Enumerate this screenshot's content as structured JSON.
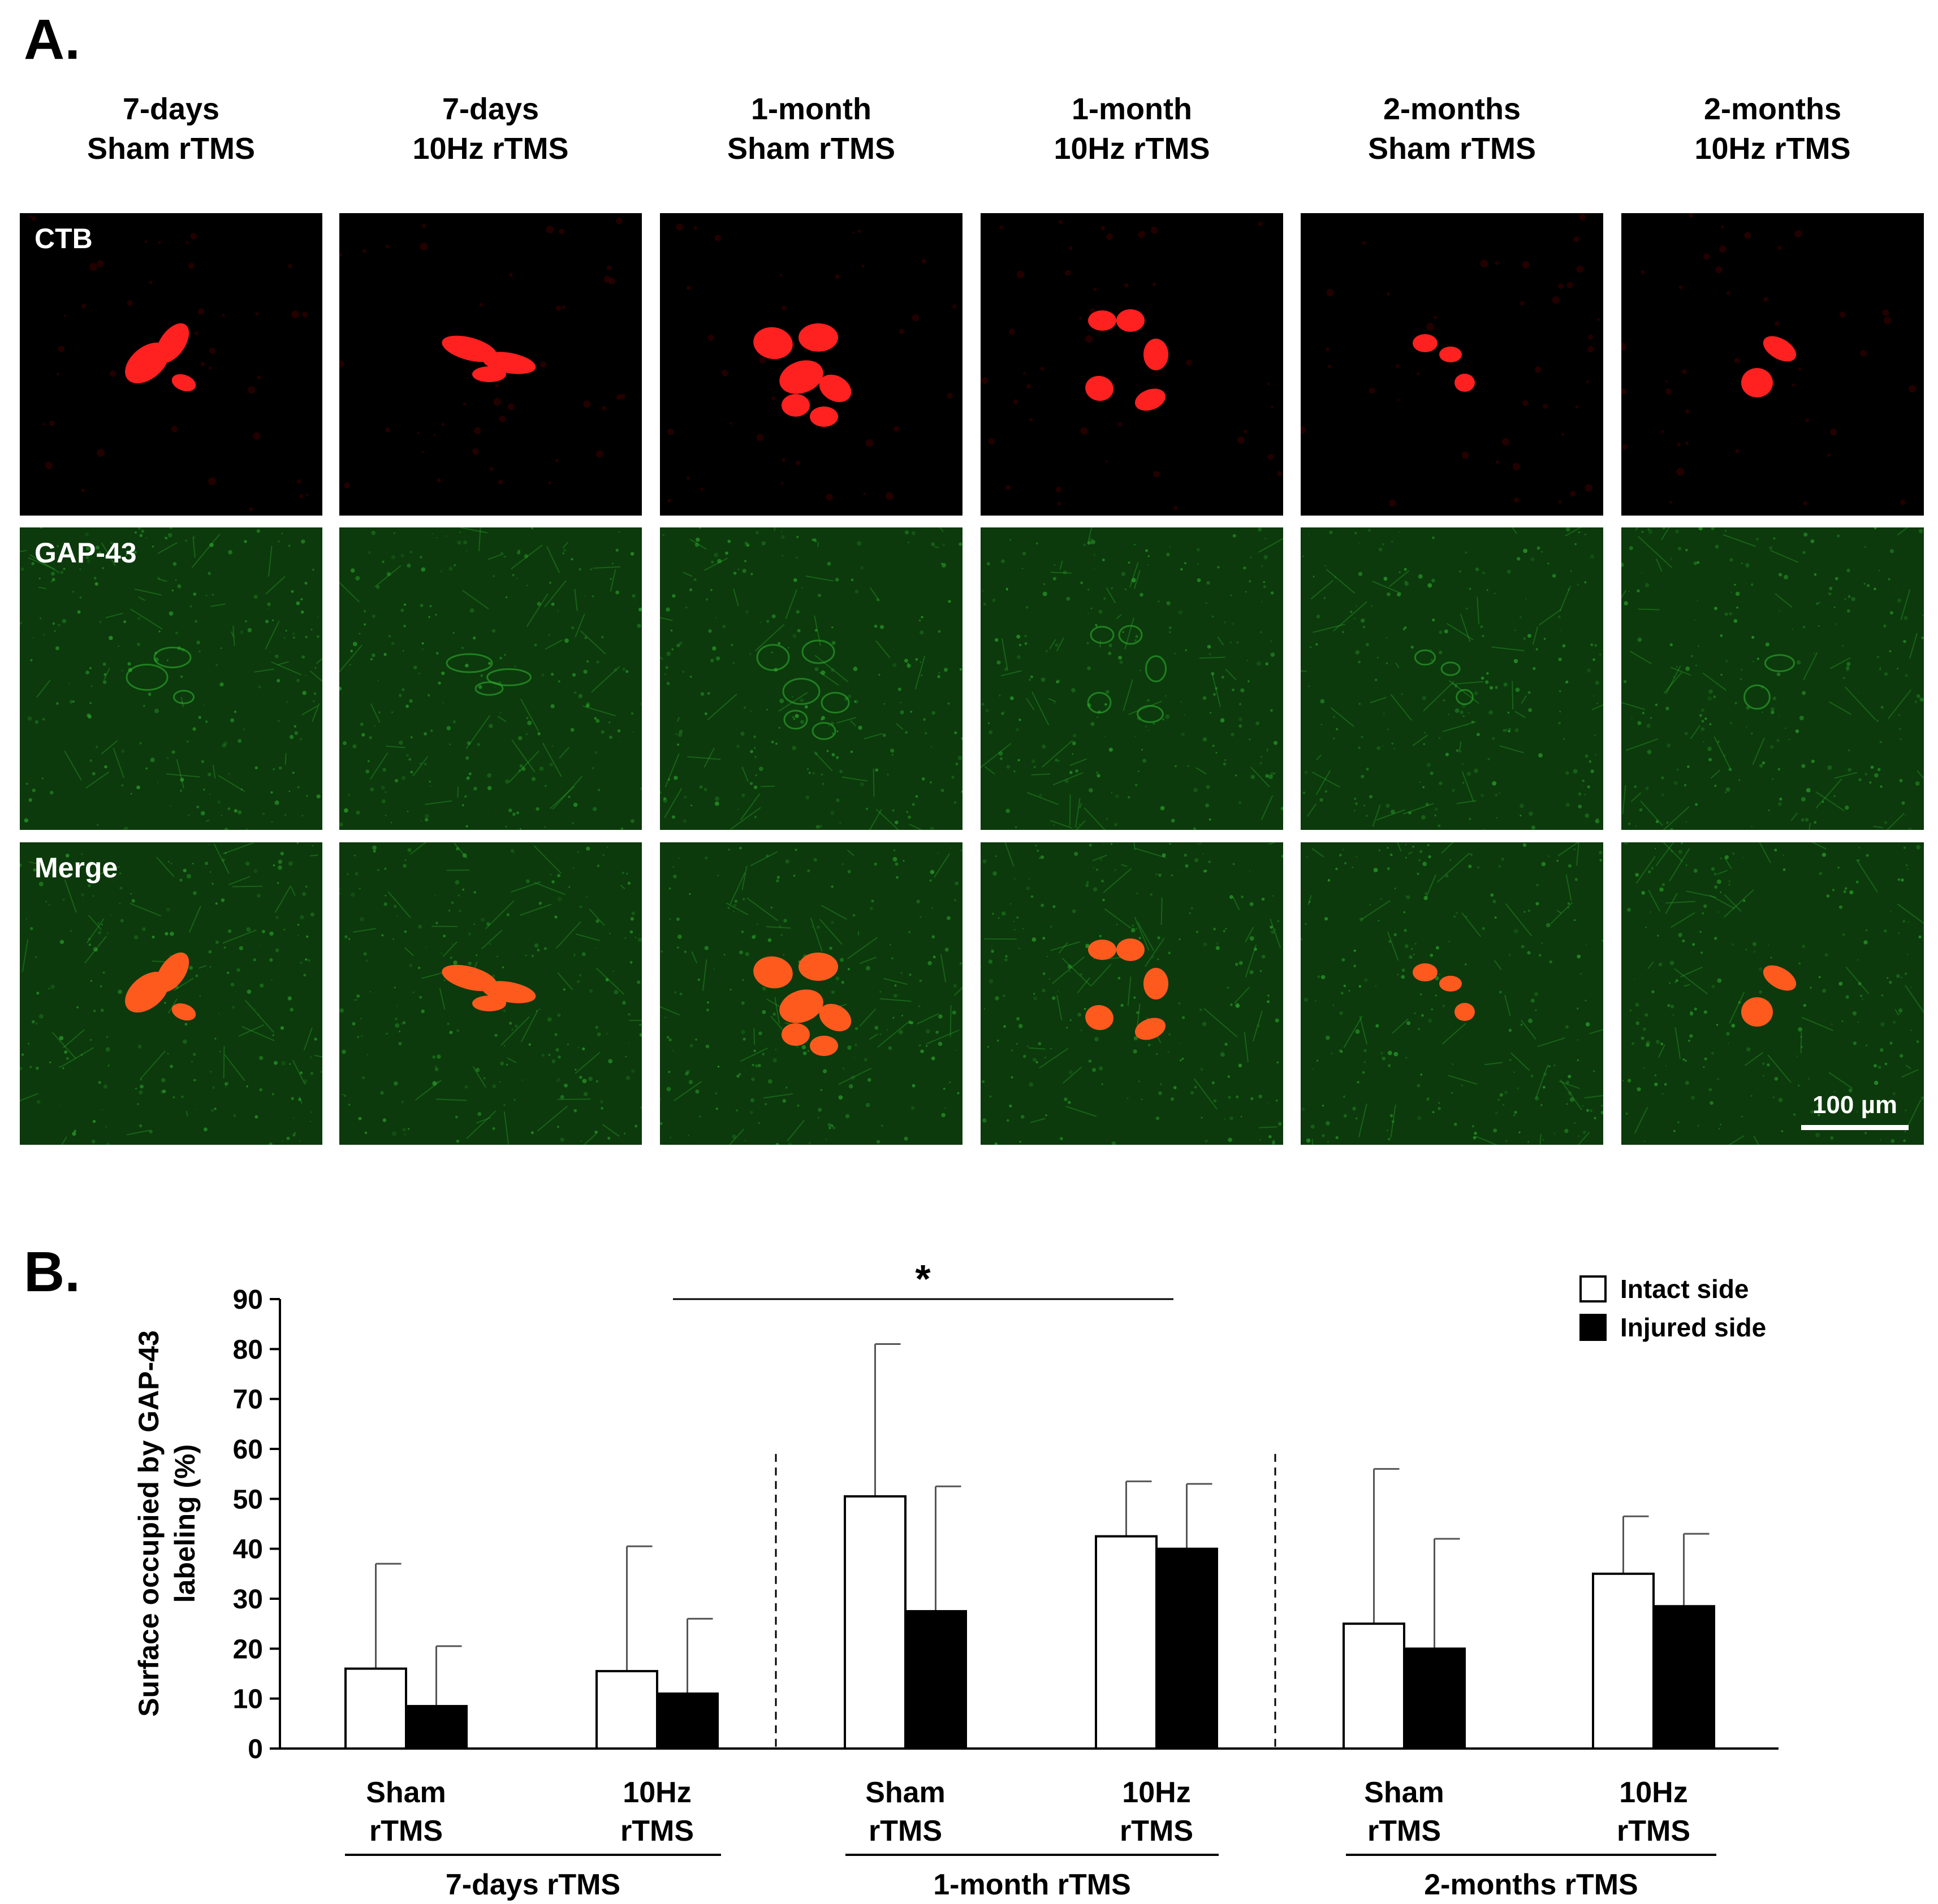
{
  "panel_a": {
    "label": "A.",
    "columns": [
      {
        "line1": "7-days",
        "line2": "Sham rTMS"
      },
      {
        "line1": "7-days",
        "line2": "10Hz rTMS"
      },
      {
        "line1": "1-month",
        "line2": "Sham rTMS"
      },
      {
        "line1": "1-month",
        "line2": "10Hz rTMS"
      },
      {
        "line1": "2-months",
        "line2": "Sham rTMS"
      },
      {
        "line1": "2-months",
        "line2": "10Hz rTMS"
      }
    ],
    "rows": [
      "CTB",
      "GAP-43",
      "Merge"
    ],
    "scale_bar": "100 µm",
    "colors": {
      "ctb": "#ff2020",
      "gap43": "#2fae2f",
      "merge_cell": "#ff5a1e"
    }
  },
  "panel_b": {
    "label": "B."
  },
  "chart_data": {
    "type": "bar",
    "ylabel_line1": "Surface occupied by GAP-43",
    "ylabel_line2": "labeling (%)",
    "ylim": [
      0,
      90
    ],
    "yticks": [
      0,
      10,
      20,
      30,
      40,
      50,
      60,
      70,
      80,
      90
    ],
    "categories": [
      {
        "line1": "Sham",
        "line2": "rTMS"
      },
      {
        "line1": "10Hz",
        "line2": "rTMS"
      },
      {
        "line1": "Sham",
        "line2": "rTMS"
      },
      {
        "line1": "10Hz",
        "line2": "rTMS"
      },
      {
        "line1": "Sham",
        "line2": "rTMS"
      },
      {
        "line1": "10Hz",
        "line2": "rTMS"
      }
    ],
    "groups": [
      "7-days rTMS",
      "1-month rTMS",
      "2-months rTMS"
    ],
    "series": [
      {
        "name": "Intact side",
        "fill": "#ffffff",
        "values": [
          16,
          15.5,
          50.5,
          42.5,
          25,
          35
        ],
        "error_upper": [
          37,
          40.5,
          81,
          53.5,
          56,
          46.5
        ]
      },
      {
        "name": "Injured side",
        "fill": "#000000",
        "values": [
          8.5,
          11,
          27.5,
          40,
          20,
          28.5
        ],
        "error_upper": [
          20.5,
          26,
          52.5,
          53,
          42,
          43
        ]
      }
    ],
    "significance": "*",
    "legend_position": "top-right",
    "grid": false
  }
}
